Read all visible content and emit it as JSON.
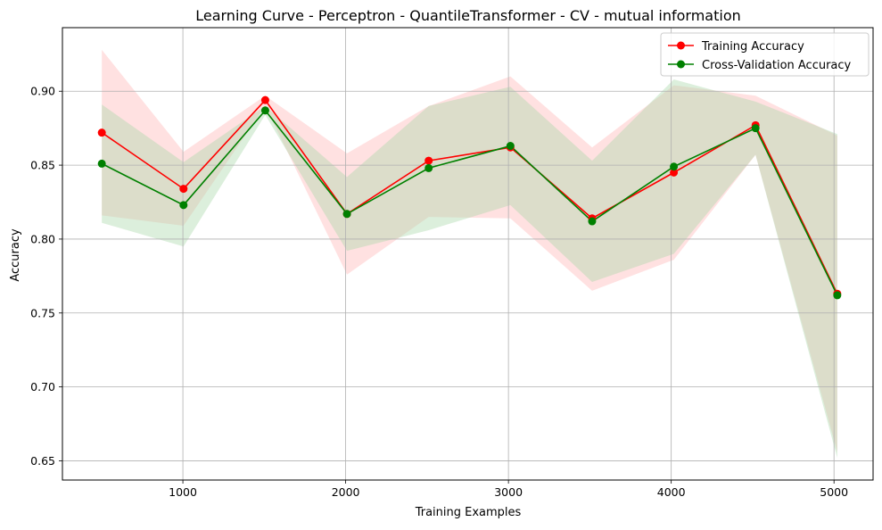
{
  "chart_data": {
    "type": "line",
    "title": "Learning Curve - Perceptron - QuantileTransformer - CV - mutual information",
    "xlabel": "Training Examples",
    "ylabel": "Accuracy",
    "xlim": [
      260,
      5240
    ],
    "ylim": [
      0.637,
      0.943
    ],
    "xticks": [
      1000,
      2000,
      3000,
      4000,
      5000
    ],
    "yticks": [
      0.65,
      0.7,
      0.75,
      0.8,
      0.85,
      0.9
    ],
    "ytick_labels": [
      "0.65",
      "0.70",
      "0.75",
      "0.80",
      "0.85",
      "0.90"
    ],
    "grid": true,
    "legend_position": "top-right",
    "x": [
      502,
      1004,
      1506,
      2008,
      2510,
      3012,
      3514,
      4016,
      4518,
      5020
    ],
    "series": [
      {
        "name": "Training Accuracy",
        "color": "#ff0000",
        "fill_color": "#ffb3b3",
        "values": [
          0.872,
          0.834,
          0.894,
          0.817,
          0.853,
          0.862,
          0.814,
          0.845,
          0.877,
          0.763
        ],
        "upper": [
          0.928,
          0.859,
          0.897,
          0.858,
          0.89,
          0.91,
          0.862,
          0.904,
          0.897,
          0.87
        ],
        "lower": [
          0.816,
          0.809,
          0.89,
          0.776,
          0.815,
          0.814,
          0.765,
          0.786,
          0.857,
          0.656
        ]
      },
      {
        "name": "Cross-Validation Accuracy",
        "color": "#008000",
        "fill_color": "#a8d8a8",
        "values": [
          0.851,
          0.823,
          0.887,
          0.817,
          0.848,
          0.863,
          0.812,
          0.849,
          0.875,
          0.762
        ],
        "upper": [
          0.891,
          0.852,
          0.89,
          0.842,
          0.89,
          0.903,
          0.853,
          0.908,
          0.893,
          0.871
        ],
        "lower": [
          0.811,
          0.795,
          0.884,
          0.792,
          0.806,
          0.823,
          0.771,
          0.79,
          0.857,
          0.652
        ]
      }
    ]
  }
}
